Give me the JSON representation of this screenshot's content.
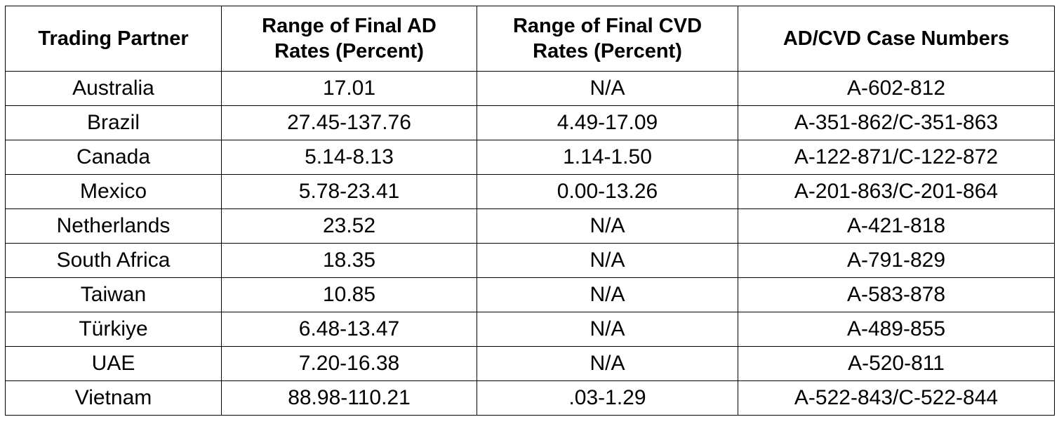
{
  "table": {
    "headers": [
      {
        "line1": "Trading Partner",
        "line2": ""
      },
      {
        "line1": "Range of Final AD",
        "line2": "Rates (Percent)"
      },
      {
        "line1": "Range of Final CVD",
        "line2": "Rates (Percent)"
      },
      {
        "line1": "AD/CVD Case Numbers",
        "line2": ""
      }
    ],
    "rows": [
      {
        "partner": "Australia",
        "ad": "17.01",
        "cvd": "N/A",
        "cases": "A-602-812"
      },
      {
        "partner": "Brazil",
        "ad": "27.45-137.76",
        "cvd": "4.49-17.09",
        "cases": "A-351-862/C-351-863"
      },
      {
        "partner": "Canada",
        "ad": "5.14-8.13",
        "cvd": "1.14-1.50",
        "cases": "A-122-871/C-122-872"
      },
      {
        "partner": "Mexico",
        "ad": "5.78-23.41",
        "cvd": "0.00-13.26",
        "cases": "A-201-863/C-201-864"
      },
      {
        "partner": "Netherlands",
        "ad": "23.52",
        "cvd": "N/A",
        "cases": "A-421-818"
      },
      {
        "partner": "South Africa",
        "ad": "18.35",
        "cvd": "N/A",
        "cases": "A-791-829"
      },
      {
        "partner": "Taiwan",
        "ad": "10.85",
        "cvd": "N/A",
        "cases": "A-583-878"
      },
      {
        "partner": "Türkiye",
        "ad": "6.48-13.47",
        "cvd": "N/A",
        "cases": "A-489-855"
      },
      {
        "partner": "UAE",
        "ad": "7.20-16.38",
        "cvd": "N/A",
        "cases": "A-520-811"
      },
      {
        "partner": "Vietnam",
        "ad": "88.98-110.21",
        "cvd": ".03-1.29",
        "cases": "A-522-843/C-522-844"
      }
    ]
  }
}
